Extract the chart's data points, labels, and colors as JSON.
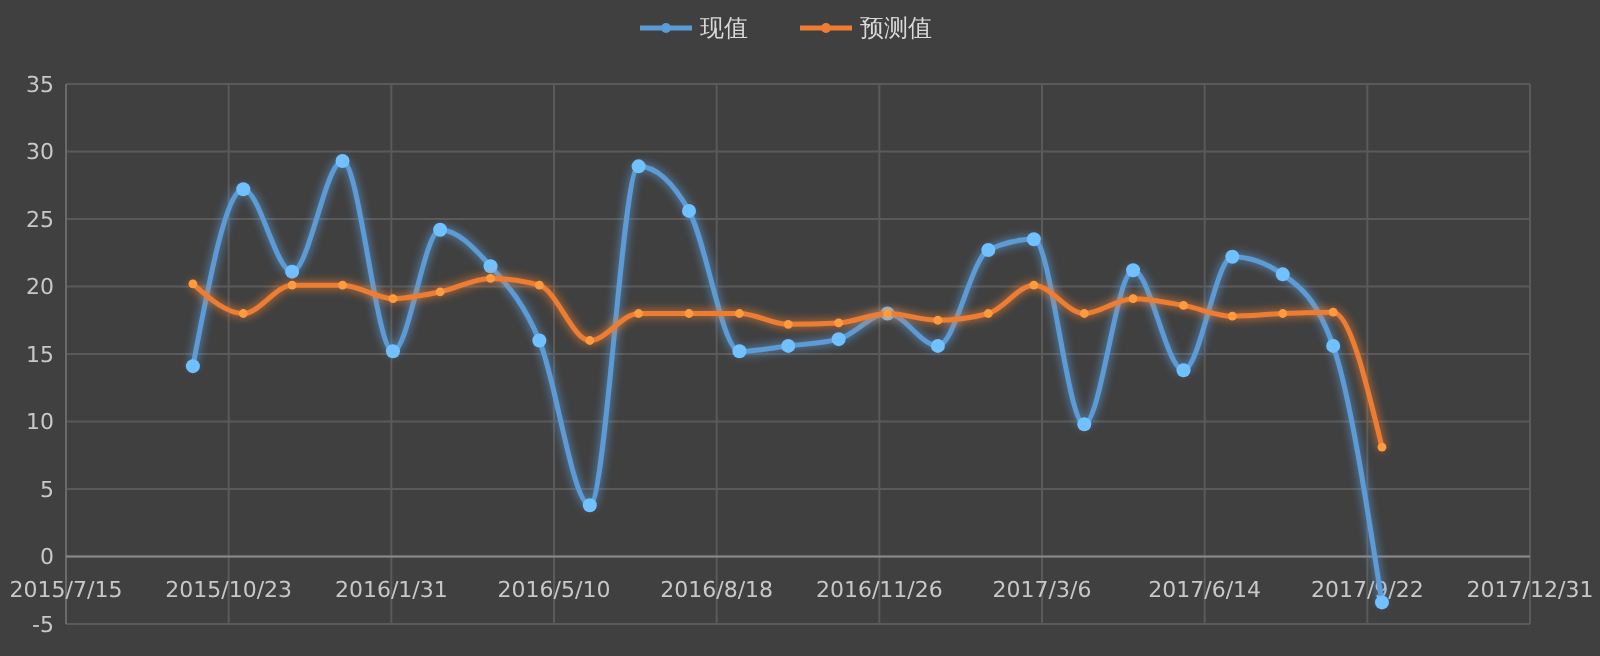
{
  "chart_data": {
    "type": "line",
    "x": [
      "2015-10-01",
      "2015-11-01",
      "2015-12-01",
      "2016-01-01",
      "2016-02-01",
      "2016-03-01",
      "2016-04-01",
      "2016-05-01",
      "2016-06-01",
      "2016-07-01",
      "2016-08-01",
      "2016-09-01",
      "2016-10-01",
      "2016-11-01",
      "2016-12-01",
      "2017-01-01",
      "2017-02-01",
      "2017-03-01",
      "2017-04-01",
      "2017-05-01",
      "2017-06-01",
      "2017-07-01",
      "2017-08-01",
      "2017-09-01",
      "2017-10-01"
    ],
    "series": [
      {
        "name": "现值",
        "color": "#5b9bd5",
        "values": [
          14.1,
          27.2,
          21.1,
          29.3,
          15.2,
          24.2,
          21.5,
          16.0,
          3.8,
          28.9,
          25.6,
          15.2,
          15.6,
          16.1,
          18.0,
          15.6,
          22.7,
          23.5,
          9.8,
          21.2,
          13.8,
          22.2,
          20.9,
          15.6,
          -3.4
        ]
      },
      {
        "name": "预测值",
        "color": "#ed7d31",
        "values": [
          20.2,
          18.0,
          20.1,
          20.1,
          19.1,
          19.6,
          20.6,
          20.1,
          16.0,
          18.0,
          18.0,
          18.0,
          17.2,
          17.3,
          18.0,
          17.5,
          18.0,
          20.1,
          18.0,
          19.1,
          18.6,
          17.8,
          18.0,
          18.1,
          8.1
        ]
      }
    ],
    "xlim": [
      "2015-07-15",
      "2017-12-31"
    ],
    "xticks": [
      {
        "value": "2015-07-15",
        "label": "2015/7/15"
      },
      {
        "value": "2015-10-23",
        "label": "2015/10/23"
      },
      {
        "value": "2016-01-31",
        "label": "2016/1/31"
      },
      {
        "value": "2016-05-10",
        "label": "2016/5/10"
      },
      {
        "value": "2016-08-18",
        "label": "2016/8/18"
      },
      {
        "value": "2016-11-26",
        "label": "2016/11/26"
      },
      {
        "value": "2017-03-06",
        "label": "2017/3/6"
      },
      {
        "value": "2017-06-14",
        "label": "2017/6/14"
      },
      {
        "value": "2017-09-22",
        "label": "2017/9/22"
      },
      {
        "value": "2017-12-31",
        "label": "2017/12/31"
      }
    ],
    "ylim": [
      -5,
      35
    ],
    "yticks": [
      -5,
      0,
      5,
      10,
      15,
      20,
      25,
      30,
      35
    ],
    "grid": true,
    "legend": "top",
    "marker": "circle",
    "line_style": "solid"
  }
}
